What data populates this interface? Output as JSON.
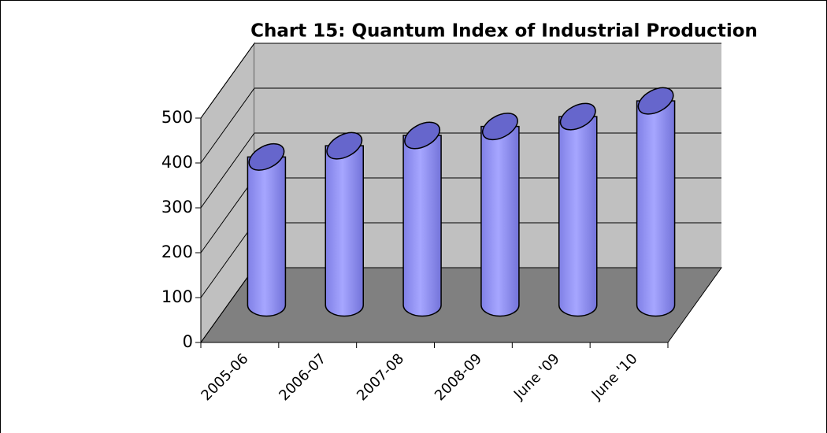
{
  "chart_data": {
    "type": "bar",
    "title": "Chart 15: Quantum Index of Industrial Production",
    "categories": [
      "2005-06",
      "2006-07",
      "2007-08",
      "2008-09",
      "June '09",
      "June '10"
    ],
    "values": [
      330,
      355,
      378,
      398,
      420,
      455
    ],
    "color": "#9999ff",
    "ylim": [
      0,
      500
    ],
    "yticks": [
      0,
      100,
      200,
      300,
      400,
      500
    ],
    "grid": true
  }
}
